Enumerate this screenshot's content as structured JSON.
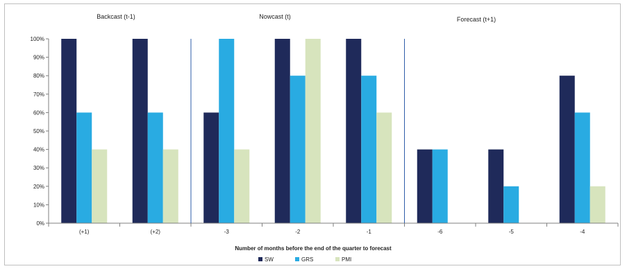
{
  "chart_data": {
    "type": "bar",
    "regions": [
      "Backcast (t-1)",
      "Nowcast (t)",
      "Forecast (t+1)"
    ],
    "categories": [
      "(+1)",
      "(+2)",
      "-3",
      "-2",
      "-1",
      "-6",
      "-5",
      "-4"
    ],
    "series": [
      {
        "name": "SW",
        "color": "#1f2a5a",
        "values": [
          100,
          100,
          60,
          100,
          100,
          40,
          40,
          80
        ]
      },
      {
        "name": "GRS",
        "color": "#29abe2",
        "values": [
          60,
          60,
          100,
          80,
          80,
          40,
          20,
          60
        ]
      },
      {
        "name": "PMI",
        "color": "#d7e4bd",
        "values": [
          40,
          40,
          40,
          100,
          60,
          0,
          0,
          20
        ]
      }
    ],
    "xlabel": "Number of months before the end of the quarter to forecast",
    "ylabel": "",
    "ylim": [
      0,
      100
    ],
    "yticks": [
      "0%",
      "10%",
      "20%",
      "30%",
      "40%",
      "50%",
      "60%",
      "70%",
      "80%",
      "90%",
      "100%"
    ],
    "grid": false,
    "legend_position": "bottom"
  }
}
